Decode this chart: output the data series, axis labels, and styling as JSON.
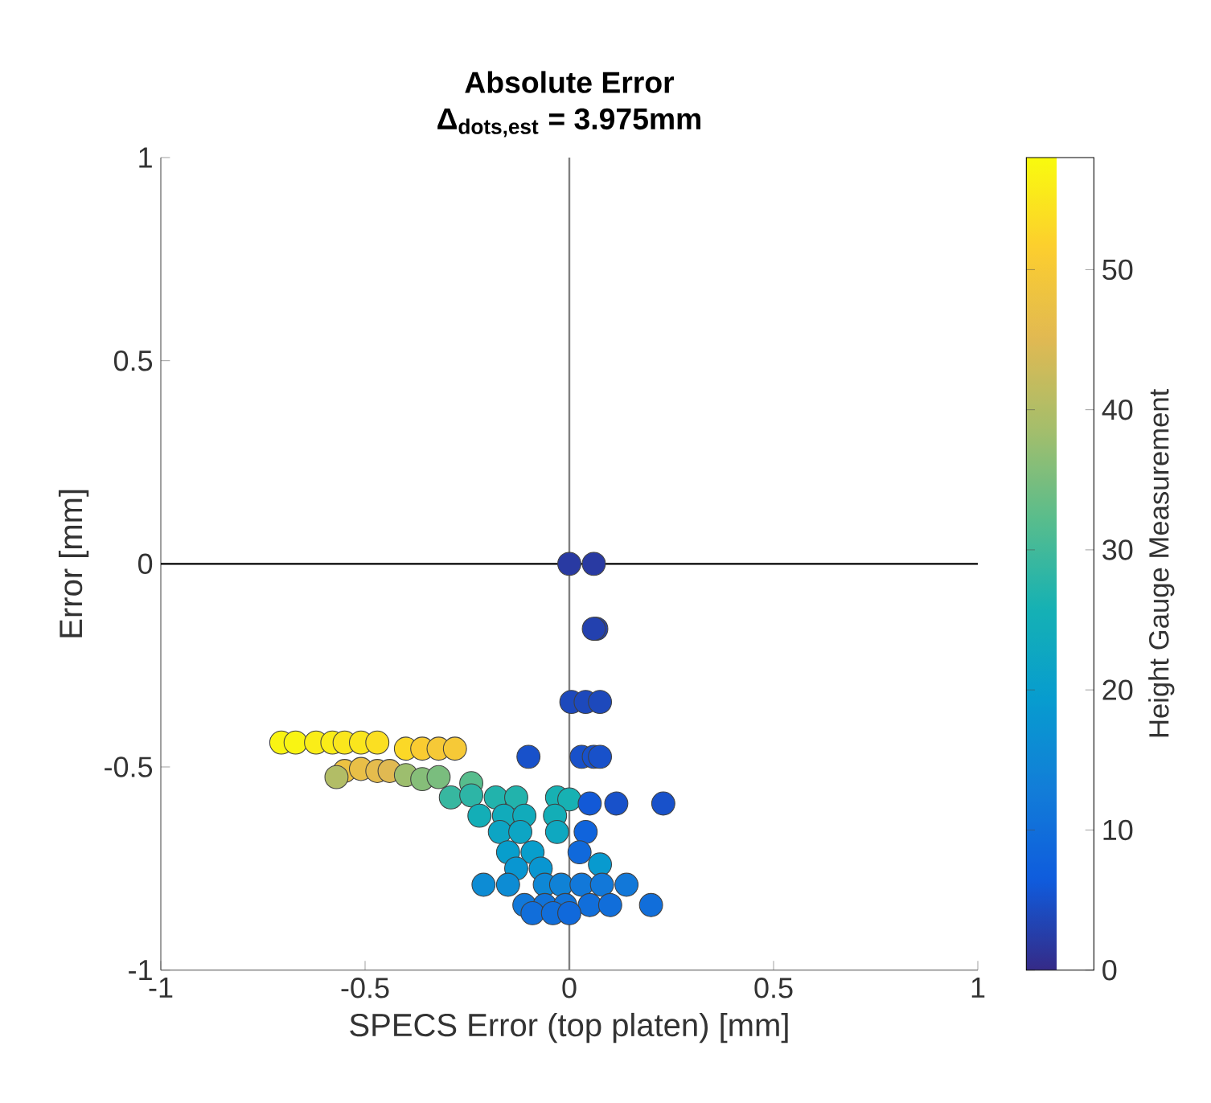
{
  "chart_data": {
    "type": "scatter",
    "title": "Absolute Error",
    "subtitle": "Δ$_{dots,est}$ = 3.975mm",
    "xlabel": "SPECS Error (top platen) [mm]",
    "ylabel": "Error [mm]",
    "clabel": "Height Gauge Measurement",
    "xlim": [
      -1,
      1
    ],
    "ylim": [
      -1,
      1
    ],
    "xticks": [
      -1,
      -0.5,
      0,
      0.5,
      1
    ],
    "yticks": [
      -1,
      -0.5,
      0,
      0.5,
      1
    ],
    "clim": [
      0,
      58
    ],
    "cticks": [
      0,
      10,
      20,
      30,
      40,
      50
    ],
    "marker": "circle",
    "ref_lines": [
      {
        "axis": "y",
        "value": 0,
        "color": "#000000"
      },
      {
        "axis": "x",
        "value": 0,
        "color": "#808080"
      }
    ],
    "x": [
      0.0,
      0.06,
      0.066,
      0.06,
      0.005,
      0.04,
      0.075,
      -0.1,
      0.03,
      0.06,
      0.075,
      -0.705,
      -0.67,
      -0.62,
      -0.58,
      -0.55,
      -0.51,
      -0.47,
      -0.4,
      -0.36,
      -0.32,
      -0.28,
      -0.55,
      -0.51,
      -0.47,
      -0.44,
      -0.57,
      -0.4,
      -0.36,
      -0.32,
      -0.24,
      -0.29,
      -0.24,
      -0.18,
      -0.13,
      -0.03,
      0.0,
      0.05,
      0.115,
      0.23,
      -0.22,
      -0.16,
      -0.11,
      -0.035,
      -0.17,
      -0.12,
      -0.03,
      0.04,
      -0.15,
      -0.09,
      0.025,
      0.075,
      -0.13,
      -0.07,
      -0.21,
      -0.15,
      -0.06,
      -0.02,
      0.03,
      0.08,
      0.14,
      -0.11,
      -0.06,
      -0.01,
      0.05,
      0.1,
      0.2,
      -0.09,
      -0.04,
      0.0
    ],
    "values": [
      0,
      0,
      -0.16,
      -0.16,
      -0.34,
      -0.34,
      -0.34,
      -0.475,
      -0.475,
      -0.475,
      -0.475,
      -0.44,
      -0.44,
      -0.44,
      -0.44,
      -0.44,
      -0.44,
      -0.44,
      -0.455,
      -0.455,
      -0.455,
      -0.455,
      -0.51,
      -0.505,
      -0.51,
      -0.51,
      -0.525,
      -0.52,
      -0.53,
      -0.525,
      -0.54,
      -0.575,
      -0.57,
      -0.575,
      -0.575,
      -0.575,
      -0.58,
      -0.59,
      -0.59,
      -0.59,
      -0.62,
      -0.62,
      -0.62,
      -0.62,
      -0.66,
      -0.66,
      -0.66,
      -0.66,
      -0.71,
      -0.71,
      -0.71,
      -0.74,
      -0.75,
      -0.75,
      -0.79,
      -0.79,
      -0.79,
      -0.79,
      -0.79,
      -0.79,
      -0.79,
      -0.84,
      -0.84,
      -0.84,
      -0.84,
      -0.84,
      -0.84,
      -0.86,
      -0.86,
      -0.86
    ],
    "cvalues": [
      2,
      2,
      3,
      3,
      4,
      4,
      4,
      5,
      5,
      5,
      5,
      57,
      57,
      56,
      56,
      55,
      55,
      54,
      53,
      51,
      50,
      50,
      48,
      47,
      46,
      45,
      40,
      38,
      36,
      35,
      32,
      29,
      28,
      27,
      27,
      26,
      26,
      6,
      5,
      5,
      25,
      24,
      24,
      25,
      22,
      22,
      23,
      8,
      20,
      20,
      9,
      19,
      18,
      18,
      16,
      16,
      15,
      14,
      12,
      12,
      12,
      12,
      11,
      11,
      10,
      10,
      10,
      10,
      10,
      9
    ]
  }
}
